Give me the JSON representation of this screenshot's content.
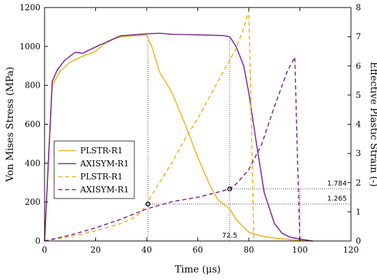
{
  "chart_data": {
    "type": "line",
    "xlabel": "Time (μs)",
    "ylabel": "Von Mises Stress (MPa)",
    "y2label": "Effective Plastic Strain (-)",
    "xlim": [
      0,
      120
    ],
    "ylim": [
      0,
      1200
    ],
    "y2lim": [
      0,
      8
    ],
    "x_ticks": [
      0,
      20,
      40,
      60,
      80,
      100,
      120
    ],
    "y_ticks": [
      0,
      200,
      400,
      600,
      800,
      1000,
      1200
    ],
    "y2_ticks": [
      0,
      1,
      2,
      3,
      4,
      5,
      6,
      7,
      8
    ],
    "legend_position": "center-left",
    "colors": {
      "plstr": "#F0B323",
      "axisym": "#7B2B91"
    },
    "series": [
      {
        "name": "PLSTR-R1",
        "axis": "left",
        "style": "solid",
        "color": "#F0B323",
        "x": [
          0,
          3,
          6,
          10,
          15,
          20,
          25,
          30,
          35,
          40,
          42,
          45,
          50,
          55,
          60,
          65,
          68,
          72.5,
          75,
          80,
          85,
          90,
          95,
          100,
          105
        ],
        "y": [
          0,
          800,
          870,
          920,
          950,
          975,
          1030,
          1050,
          1055,
          1058,
          1000,
          870,
          760,
          600,
          430,
          280,
          210,
          165,
          110,
          45,
          25,
          15,
          8,
          3,
          0
        ]
      },
      {
        "name": "AXISYM-R1",
        "axis": "left",
        "style": "solid",
        "color": "#7B2B91",
        "x": [
          0,
          3,
          5,
          8,
          12,
          15,
          18,
          22,
          25,
          28,
          30,
          35,
          40,
          45,
          50,
          55,
          60,
          65,
          70,
          72.5,
          75,
          78,
          80,
          83,
          86,
          90,
          93,
          96,
          100,
          105
        ],
        "y": [
          0,
          820,
          880,
          930,
          970,
          965,
          985,
          1010,
          1025,
          1045,
          1055,
          1060,
          1065,
          1068,
          1062,
          1061,
          1060,
          1058,
          1056,
          1050,
          1000,
          900,
          760,
          500,
          250,
          90,
          40,
          20,
          10,
          0
        ]
      },
      {
        "name": "PLSTR-R1",
        "axis": "right",
        "style": "dashed",
        "color": "#F0B323",
        "x": [
          0,
          10,
          20,
          30,
          35,
          38,
          40,
          45,
          50,
          55,
          60,
          65,
          70,
          75,
          78,
          80,
          81,
          82
        ],
        "y": [
          0,
          0.15,
          0.35,
          0.6,
          0.8,
          1.0,
          1.3,
          2.0,
          2.7,
          3.5,
          4.2,
          5.0,
          5.8,
          6.6,
          7.3,
          7.9,
          4.0,
          0
        ]
      },
      {
        "name": "AXISYM-R1",
        "axis": "right",
        "style": "dashed",
        "color": "#7B2B91",
        "x": [
          0,
          10,
          20,
          30,
          40,
          50,
          60,
          70,
          72.5,
          75,
          80,
          85,
          90,
          95,
          98,
          99,
          100
        ],
        "y": [
          0,
          0.2,
          0.45,
          0.75,
          1.1,
          1.35,
          1.5,
          1.72,
          1.784,
          1.95,
          2.45,
          3.3,
          4.6,
          5.8,
          6.3,
          3.0,
          0
        ]
      }
    ],
    "markers": [
      {
        "x": 40.5,
        "y2": 1.265
      },
      {
        "x": 72.5,
        "y2": 1.784
      }
    ],
    "annotations": {
      "v1": "1.784",
      "v2": "1.265",
      "t": "72.5"
    }
  }
}
